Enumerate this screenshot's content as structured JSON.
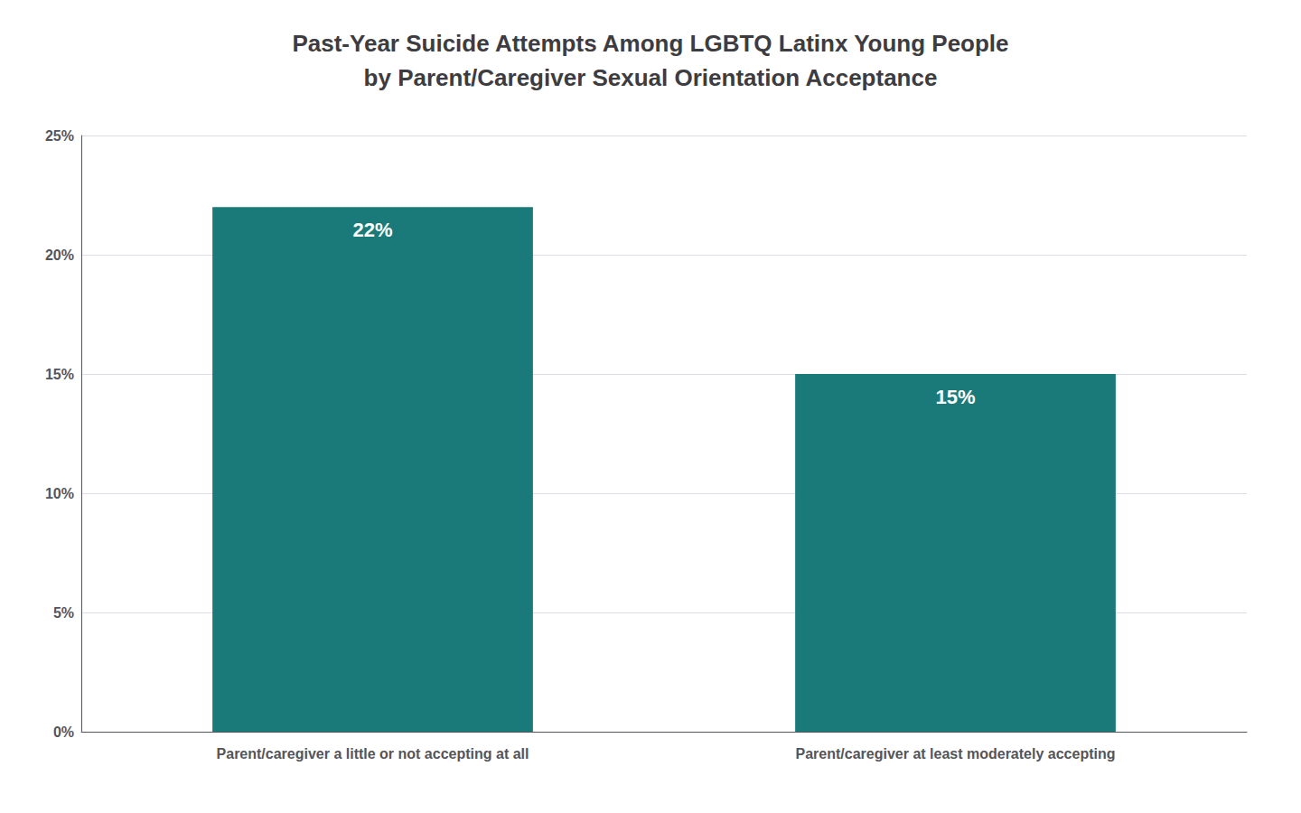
{
  "chart_data": {
    "type": "bar",
    "title": "Past-Year Suicide Attempts Among LGBTQ Latinx Young People\nby Parent/Caregiver Sexual Orientation Acceptance",
    "categories": [
      "Parent/caregiver a little or not accepting at all",
      "Parent/caregiver at least moderately accepting"
    ],
    "values": [
      22,
      15
    ],
    "value_labels": [
      "22%",
      "15%"
    ],
    "data_labels": true,
    "color": "#1a7a7a",
    "ylim": [
      0,
      25
    ],
    "yticks": [
      {
        "value": 0,
        "label": "0%"
      },
      {
        "value": 5,
        "label": "5%"
      },
      {
        "value": 10,
        "label": "10%"
      },
      {
        "value": 15,
        "label": "15%"
      },
      {
        "value": 20,
        "label": "20%"
      },
      {
        "value": 25,
        "label": "25%"
      }
    ],
    "grid": true
  }
}
